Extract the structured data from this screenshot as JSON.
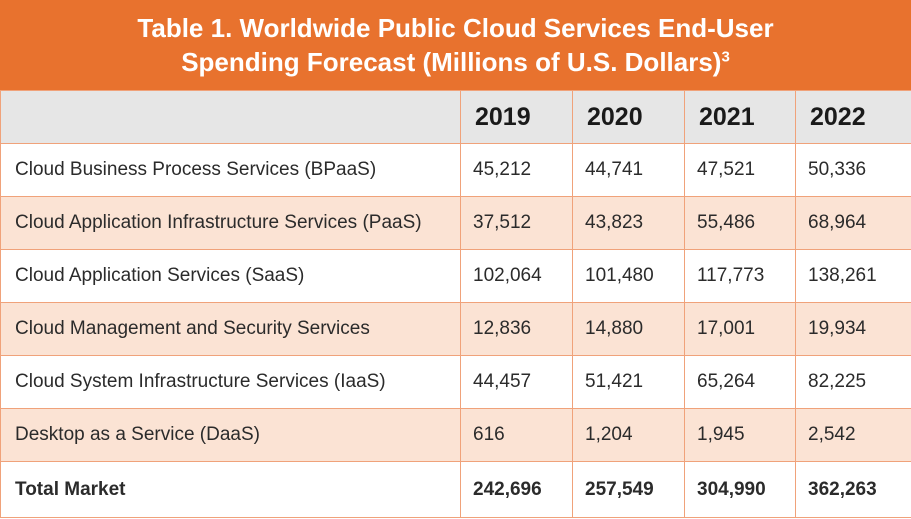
{
  "title": {
    "line1": "Table 1. Worldwide Public Cloud Services End-User",
    "line2": "Spending Forecast (Millions of U.S. Dollars)",
    "footnote": "3"
  },
  "table": {
    "headers": [
      "",
      "2019",
      "2020",
      "2021",
      "2022"
    ],
    "rows": [
      {
        "label": "Cloud Business Process Services (BPaaS)",
        "values": [
          "45,212",
          "44,741",
          "47,521",
          "50,336"
        ]
      },
      {
        "label": "Cloud Application Infrastructure Services (PaaS)",
        "values": [
          "37,512",
          "43,823",
          "55,486",
          "68,964"
        ]
      },
      {
        "label": "Cloud Application Services (SaaS)",
        "values": [
          "102,064",
          "101,480",
          "117,773",
          "138,261"
        ]
      },
      {
        "label": "Cloud Management and Security Services",
        "values": [
          "12,836",
          "14,880",
          "17,001",
          "19,934"
        ]
      },
      {
        "label": "Cloud System Infrastructure Services (IaaS)",
        "values": [
          "44,457",
          "51,421",
          "65,264",
          "82,225"
        ]
      },
      {
        "label": "Desktop as a Service (DaaS)",
        "values": [
          "616",
          "1,204",
          "1,945",
          "2,542"
        ]
      }
    ],
    "total": {
      "label": "Total Market",
      "values": [
        "242,696",
        "257,549",
        "304,990",
        "362,263"
      ]
    }
  },
  "colors": {
    "accent": "#e8722e",
    "border": "#f0a27a",
    "row_alt": "#fbe3d4",
    "header_bg": "#e6e6e6"
  }
}
